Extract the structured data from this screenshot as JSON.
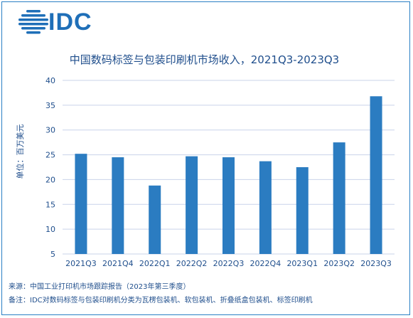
{
  "logo": {
    "text": "IDC"
  },
  "source": "来源：中国工业打印机市场跟踪报告（2023年第三季度）",
  "footnote": "备注：IDC对数码标签与包装印刷机分类为瓦楞包装机、软包装机、折叠纸盒包装机、标签印刷机",
  "colors": {
    "bar": "#2b7cc1",
    "grid": "#c9d3ea",
    "text": "#1f4e8c",
    "border": "#2a7fc4"
  },
  "chart_data": {
    "type": "bar",
    "title": "中国数码标签与包装印刷机市场收入，2021Q3-2023Q3",
    "ylabel": "单位：百万美元",
    "xlabel": "",
    "categories": [
      "2021Q3",
      "2021Q4",
      "2022Q1",
      "2022Q2",
      "2022Q3",
      "2022Q4",
      "2023Q1",
      "2023Q2",
      "2023Q3"
    ],
    "values": [
      25.2,
      24.5,
      18.8,
      24.7,
      24.5,
      23.7,
      22.5,
      27.5,
      36.8
    ],
    "ylim": [
      5,
      40
    ],
    "yticks": [
      5,
      10,
      15,
      20,
      25,
      30,
      35,
      40
    ],
    "grid": true,
    "legend": "none"
  }
}
